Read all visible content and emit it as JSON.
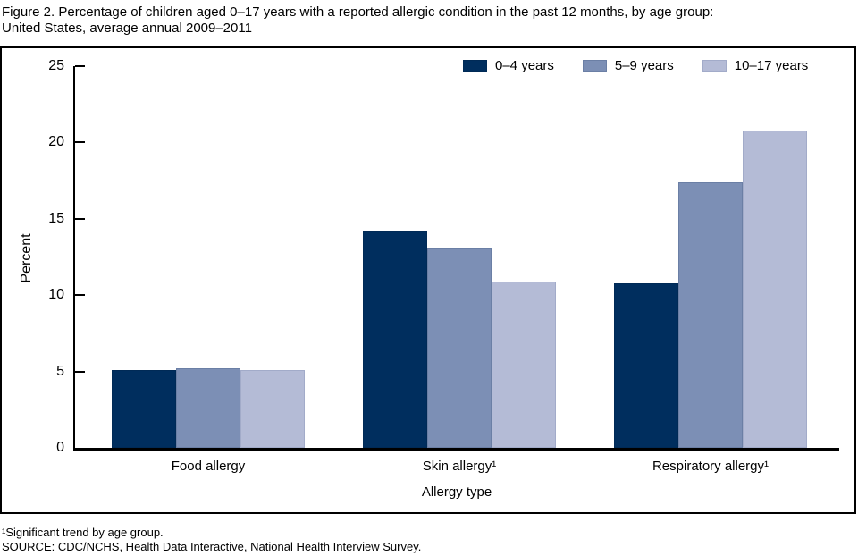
{
  "figure": {
    "title_line1": "Figure 2. Percentage of children aged 0–17 years with a reported allergic condition in the past 12 months, by age group:",
    "title_line2": "United States, average annual 2009–2011",
    "footnote1": "¹Significant trend by age group.",
    "source": "SOURCE: CDC/NCHS, Health Data Interactive, National Health Interview Survey."
  },
  "chart_data": {
    "type": "bar",
    "title": "Percentage of children aged 0–17 years with a reported allergic condition in the past 12 months, by age group: United States, average annual 2009–2011",
    "categories": [
      "Food allergy",
      "Skin allergy¹",
      "Respiratory allergy¹"
    ],
    "series": [
      {
        "name": "0–4 years",
        "color": "#002E5E",
        "border_color": "#002A56",
        "values": [
          5.1,
          14.2,
          10.8
        ]
      },
      {
        "name": "5–9 years",
        "color": "#7C8FB5",
        "border_color": "#6B7FA5",
        "values": [
          5.2,
          13.1,
          17.4
        ]
      },
      {
        "name": "10–17 years",
        "color": "#B4BBD6",
        "border_color": "#A2ABC9",
        "values": [
          5.1,
          10.9,
          20.8
        ]
      }
    ],
    "xlabel": "Allergy type",
    "ylabel": "Percent",
    "ylim": [
      0,
      25
    ],
    "yticks": [
      0,
      5,
      10,
      15,
      20,
      25
    ],
    "grid": false,
    "legend_position": "top-right-inside",
    "axis_color": "#000000",
    "background_color": "#ffffff"
  }
}
